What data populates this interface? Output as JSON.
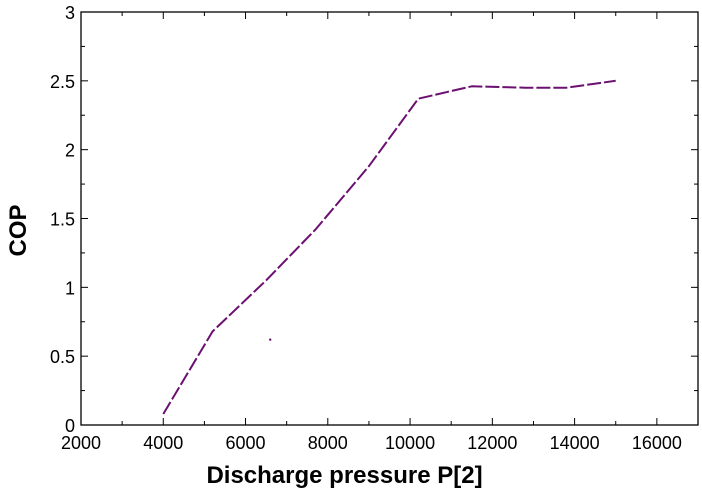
{
  "chart_data": {
    "type": "line",
    "xlabel": "Discharge pressure P[2]",
    "ylabel": "COP",
    "xlim": [
      2000,
      17000
    ],
    "ylim": [
      0,
      3
    ],
    "xticks": [
      2000,
      4000,
      6000,
      8000,
      10000,
      12000,
      14000,
      16000
    ],
    "xtick_labels": [
      "2000",
      "4000",
      "6000",
      "8000",
      "10000",
      "12000",
      "14000",
      "16000"
    ],
    "yticks": [
      0,
      0.5,
      1,
      1.5,
      2,
      2.5,
      3
    ],
    "ytick_labels": [
      "0",
      "0.5",
      "1",
      "1.5",
      "2",
      "2.5",
      "3"
    ],
    "grid": false,
    "line_style": "dashed",
    "series": [
      {
        "color": "#6b1070",
        "x": [
          4000,
          5200,
          6500,
          7700,
          9000,
          10200,
          11500,
          12800,
          13800,
          15000
        ],
        "y": [
          0.08,
          0.68,
          1.05,
          1.42,
          1.88,
          2.37,
          2.46,
          2.45,
          2.45,
          2.5
        ]
      }
    ],
    "markers": [
      {
        "x": 6600,
        "y": 0.62,
        "color": "#6b1070"
      }
    ]
  }
}
